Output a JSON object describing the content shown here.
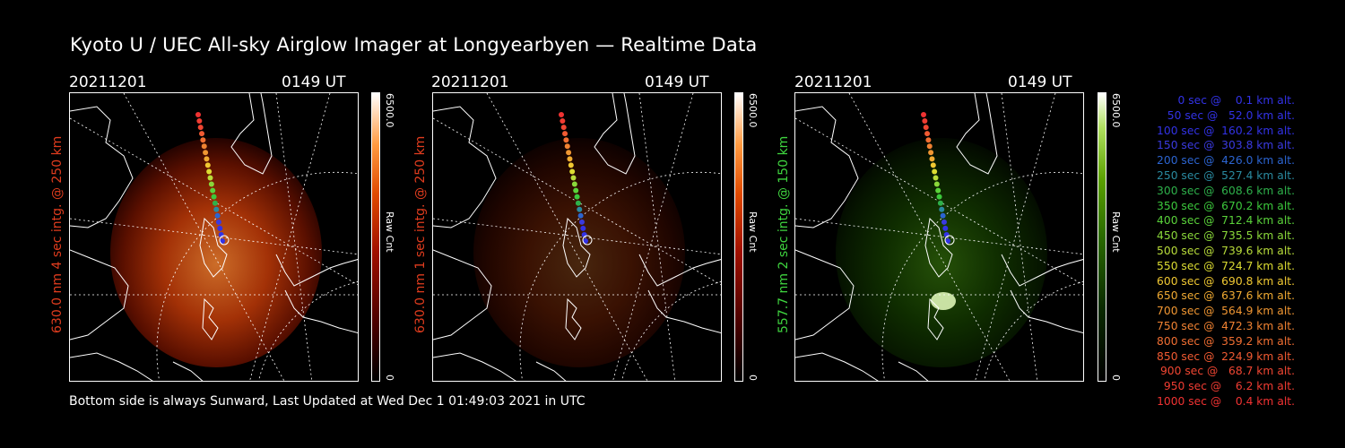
{
  "page": {
    "title": "Kyoto U / UEC All-sky Airglow Imager at Longyearbyen — Realtime Data",
    "footer": "Bottom side is always Sunward, Last Updated at Wed Dec  1 01:49:03 2021 in UTC"
  },
  "panels": [
    {
      "date": "20211201",
      "time": "0149 UT",
      "side_label": "630.0 nm 4 sec intg. @ 250 km",
      "label_color": "#e03c1e",
      "colorbar_max": "6500.0",
      "colorbar_min": "0",
      "colorbar_label": "Raw Cnt",
      "colormap": "red",
      "intensity": 0.85
    },
    {
      "date": "20211201",
      "time": "0149 UT",
      "side_label": "630.0 nm 1 sec intg. @ 250 km",
      "label_color": "#e03c1e",
      "colorbar_max": "6500.0",
      "colorbar_min": "0",
      "colorbar_label": "Raw Cnt",
      "colormap": "red",
      "intensity": 0.3
    },
    {
      "date": "20211201",
      "time": "0149 UT",
      "side_label": "557.7 nm 2 sec intg. @ 150 km",
      "label_color": "#3fd43f",
      "colorbar_max": "6500.0",
      "colorbar_min": "0",
      "colorbar_label": "Raw Cnt",
      "colormap": "green",
      "intensity": 0.5
    }
  ],
  "legend": [
    {
      "text": "   0 sec @    0.1 km alt.",
      "color": "#3232e6"
    },
    {
      "text": "  50 sec @   52.0 km alt.",
      "color": "#3232e6"
    },
    {
      "text": " 100 sec @  160.2 km alt.",
      "color": "#3232e6"
    },
    {
      "text": " 150 sec @  303.8 km alt.",
      "color": "#3a3ae0"
    },
    {
      "text": " 200 sec @  426.0 km alt.",
      "color": "#2c64d0"
    },
    {
      "text": " 250 sec @  527.4 km alt.",
      "color": "#2a8aa0"
    },
    {
      "text": " 300 sec @  608.6 km alt.",
      "color": "#2eb04a"
    },
    {
      "text": " 350 sec @  670.2 km alt.",
      "color": "#3cc83c"
    },
    {
      "text": " 400 sec @  712.4 km alt.",
      "color": "#5ad23a"
    },
    {
      "text": " 450 sec @  735.5 km alt.",
      "color": "#8ad83a"
    },
    {
      "text": " 500 sec @  739.6 km alt.",
      "color": "#b8dc3a"
    },
    {
      "text": " 550 sec @  724.7 km alt.",
      "color": "#dcdc32"
    },
    {
      "text": " 600 sec @  690.8 km alt.",
      "color": "#f0c832"
    },
    {
      "text": " 650 sec @  637.6 km alt.",
      "color": "#f0aa32"
    },
    {
      "text": " 700 sec @  564.9 km alt.",
      "color": "#f09632"
    },
    {
      "text": " 750 sec @  472.3 km alt.",
      "color": "#f08232"
    },
    {
      "text": " 800 sec @  359.2 km alt.",
      "color": "#f06e32"
    },
    {
      "text": " 850 sec @  224.9 km alt.",
      "color": "#f05a32"
    },
    {
      "text": " 900 sec @   68.7 km alt.",
      "color": "#f04632"
    },
    {
      "text": " 950 sec @    6.2 km alt.",
      "color": "#f03c32"
    },
    {
      "text": "1000 sec @    0.4 km alt.",
      "color": "#f03232"
    }
  ]
}
